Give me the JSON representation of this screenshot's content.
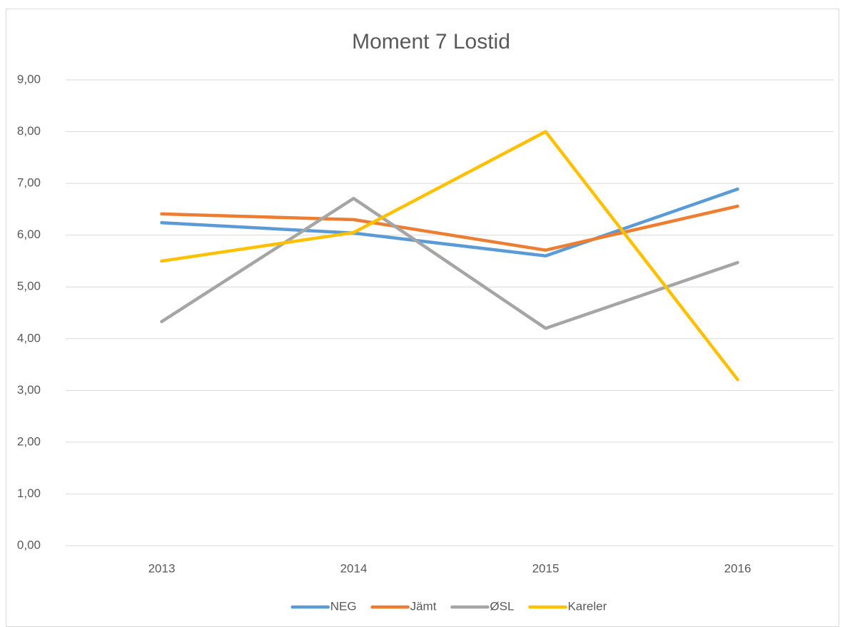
{
  "chart_data": {
    "type": "line",
    "title": "Moment 7 Lostid",
    "categories": [
      "2013",
      "2014",
      "2015",
      "2016"
    ],
    "series": [
      {
        "name": "NEG",
        "color": "#5b9bd5",
        "values": [
          6.24,
          6.04,
          5.6,
          6.89
        ]
      },
      {
        "name": "Jämt",
        "color": "#ed7d31",
        "values": [
          6.41,
          6.3,
          5.71,
          6.56
        ]
      },
      {
        "name": "ØSL",
        "color": "#a5a5a5",
        "values": [
          4.33,
          6.71,
          4.2,
          5.47
        ]
      },
      {
        "name": "Kareler",
        "color": "#ffc000",
        "values": [
          5.5,
          6.05,
          8.0,
          3.21
        ]
      }
    ],
    "ylim": [
      0,
      9
    ],
    "yticks": [
      {
        "value": 0,
        "label": "0,00"
      },
      {
        "value": 1,
        "label": "1,00"
      },
      {
        "value": 2,
        "label": "2,00"
      },
      {
        "value": 3,
        "label": "3,00"
      },
      {
        "value": 4,
        "label": "4,00"
      },
      {
        "value": 5,
        "label": "5,00"
      },
      {
        "value": 6,
        "label": "6,00"
      },
      {
        "value": 7,
        "label": "7,00"
      },
      {
        "value": 8,
        "label": "8,00"
      },
      {
        "value": 9,
        "label": "9,00"
      }
    ],
    "grid": true,
    "legend": "bottom"
  }
}
